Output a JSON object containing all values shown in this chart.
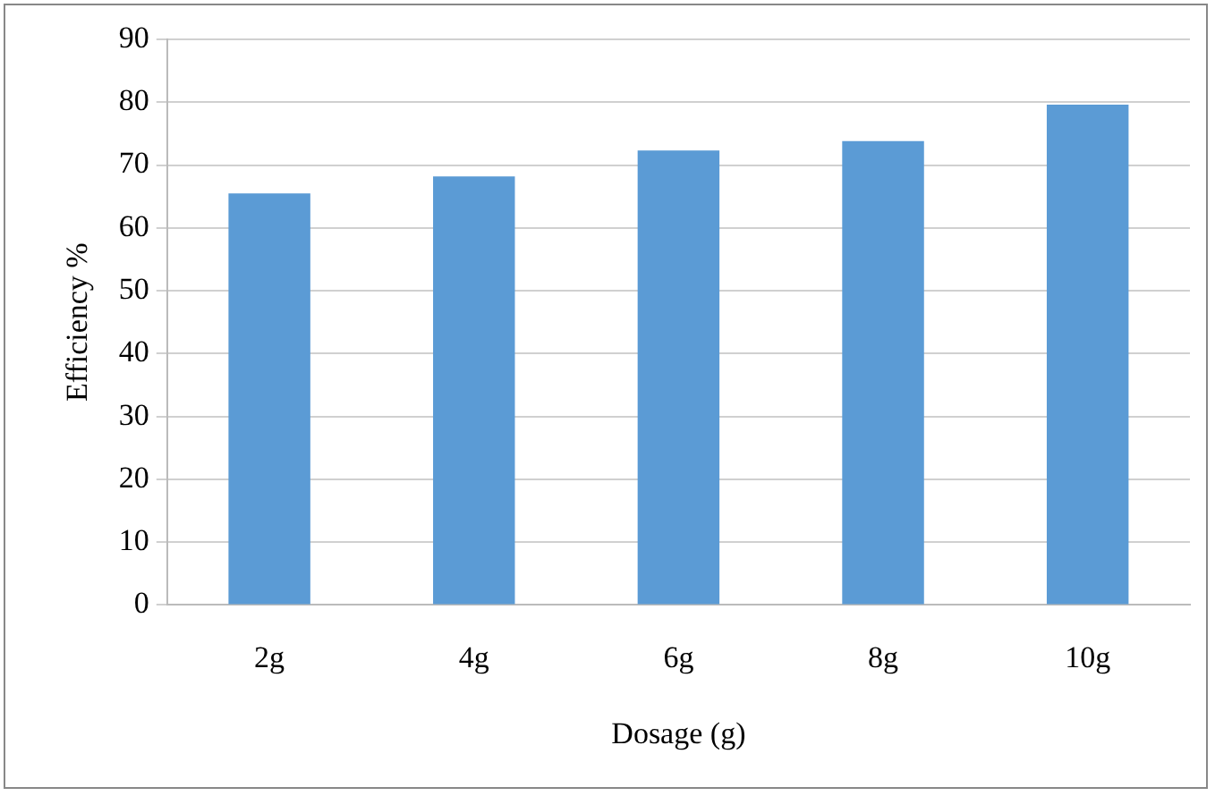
{
  "chart_data": {
    "type": "bar",
    "xlabel": "Dosage (g)",
    "ylabel": "Efficiency %",
    "categories": [
      "2g",
      "4g",
      "6g",
      "8g",
      "10g"
    ],
    "values": [
      65.5,
      68.2,
      72.3,
      73.8,
      79.6
    ],
    "color": "#5b9bd5",
    "ylim": [
      0,
      90
    ],
    "yticks": [
      0,
      10,
      20,
      30,
      40,
      50,
      60,
      70,
      80,
      90
    ],
    "grid": "y",
    "legend": false
  }
}
